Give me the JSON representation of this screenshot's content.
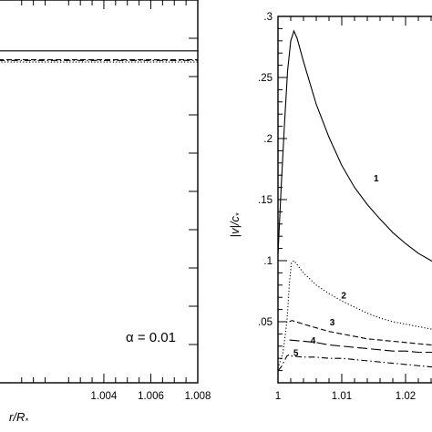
{
  "chart_data": [
    {
      "type": "line",
      "title": "",
      "xlabel": "r/R*",
      "xlabel_main": "r/R",
      "xlabel_sub": "*",
      "ylabel": "",
      "xlim": [
        0.9995,
        1.008
      ],
      "x_ticks": [
        1.004,
        1.006,
        1.008
      ],
      "x_tick_labels": [
        "1.004",
        "1.006",
        "1.008"
      ],
      "x_minor_ticks": [
        1.0005,
        1.001,
        1.0015,
        1.0025,
        1.003,
        1.0035,
        1.0045,
        1.005,
        1.0055,
        1.0065,
        1.007,
        1.0075
      ],
      "ylim": [
        0,
        1
      ],
      "y_ticks": [
        0.1,
        0.2,
        0.3,
        0.4,
        0.5,
        0.6,
        0.7,
        0.8,
        0.9
      ],
      "annotation": "α = 0.01",
      "series": [
        {
          "style": "solid",
          "x": [
            0.9995,
            1.008
          ],
          "y": [
            0.867,
            0.867
          ]
        },
        {
          "style": "dashed",
          "x": [
            0.9995,
            1.008
          ],
          "y": [
            0.844,
            0.844
          ]
        },
        {
          "style": "dotted",
          "x": [
            0.9995,
            1.008
          ],
          "y": [
            0.838,
            0.838
          ]
        },
        {
          "style": "dashdot",
          "x": [
            0.9995,
            1.008
          ],
          "y": [
            0.842,
            0.842
          ]
        }
      ]
    },
    {
      "type": "line",
      "title": "",
      "xlabel": "",
      "ylabel": "|v|/c*",
      "ylabel_main": "|v|/c",
      "ylabel_sub": "*",
      "xlim": [
        1,
        1.025
      ],
      "ylim": [
        0,
        0.3
      ],
      "x_ticks": [
        1,
        1.01,
        1.02
      ],
      "x_tick_labels": [
        "1",
        "1.01",
        "1.02"
      ],
      "x_minor_ticks": [
        1.002,
        1.004,
        1.006,
        1.008,
        1.012,
        1.014,
        1.016,
        1.018,
        1.022,
        1.024
      ],
      "y_ticks": [
        0.05,
        0.1,
        0.15,
        0.2,
        0.25,
        0.3
      ],
      "y_tick_labels": [
        ".05",
        ".1",
        ".15",
        ".2",
        ".25",
        ".3"
      ],
      "y_minor_ticks": [
        0.01,
        0.02,
        0.03,
        0.04,
        0.06,
        0.07,
        0.08,
        0.09,
        0.11,
        0.12,
        0.13,
        0.14,
        0.16,
        0.17,
        0.18,
        0.19,
        0.21,
        0.22,
        0.23,
        0.24,
        0.26,
        0.27,
        0.28,
        0.29
      ],
      "series": [
        {
          "name": "1",
          "style": "solid",
          "x": [
            1.0,
            1.0005,
            1.001,
            1.0015,
            1.002,
            1.0025,
            1.003,
            1.004,
            1.006,
            1.008,
            1.01,
            1.012,
            1.014,
            1.016,
            1.018,
            1.02,
            1.022,
            1.024,
            1.025
          ],
          "y": [
            0.105,
            0.16,
            0.21,
            0.255,
            0.28,
            0.288,
            0.282,
            0.263,
            0.228,
            0.201,
            0.178,
            0.16,
            0.146,
            0.134,
            0.123,
            0.114,
            0.106,
            0.1,
            0.097
          ],
          "label_at": [
            1.0154,
            0.168
          ]
        },
        {
          "name": "2",
          "style": "dotted",
          "x": [
            1.0,
            1.0008,
            1.0014,
            1.0018,
            1.0021,
            1.0025,
            1.004,
            1.006,
            1.008,
            1.01,
            1.012,
            1.014,
            1.016,
            1.018,
            1.02,
            1.022,
            1.024,
            1.025
          ],
          "y": [
            0.012,
            0.025,
            0.05,
            0.082,
            0.098,
            0.1,
            0.09,
            0.08,
            0.073,
            0.067,
            0.062,
            0.057,
            0.053,
            0.05,
            0.048,
            0.046,
            0.044,
            0.043
          ],
          "label_at": [
            1.0103,
            0.072
          ]
        },
        {
          "name": "3",
          "style": "dashed",
          "x": [
            1.0018,
            1.0022,
            1.004,
            1.006,
            1.008,
            1.01,
            1.012,
            1.014,
            1.016,
            1.018,
            1.02,
            1.022,
            1.024,
            1.025
          ],
          "y": [
            0.05,
            0.051,
            0.048,
            0.045,
            0.042,
            0.04,
            0.038,
            0.036,
            0.035,
            0.034,
            0.033,
            0.032,
            0.031,
            0.031
          ],
          "label_at": [
            1.0085,
            0.05
          ]
        },
        {
          "name": "4",
          "style": "longdash",
          "x": [
            1.0018,
            1.004,
            1.006,
            1.008,
            1.01,
            1.012,
            1.014,
            1.016,
            1.018,
            1.02,
            1.022,
            1.024,
            1.025
          ],
          "y": [
            0.035,
            0.034,
            0.033,
            0.031,
            0.03,
            0.029,
            0.028,
            0.027,
            0.026,
            0.026,
            0.025,
            0.025,
            0.025
          ],
          "label_at": [
            1.0055,
            0.035
          ]
        },
        {
          "name": "5",
          "style": "dashdot",
          "x": [
            1.0,
            1.0005,
            1.001,
            1.0014,
            1.0018,
            1.002,
            1.004,
            1.006,
            1.008,
            1.01,
            1.012,
            1.014,
            1.016,
            1.018,
            1.02,
            1.022,
            1.024,
            1.025
          ],
          "y": [
            0.01,
            0.013,
            0.018,
            0.022,
            0.023,
            0.022,
            0.021,
            0.021,
            0.02,
            0.02,
            0.019,
            0.018,
            0.017,
            0.016,
            0.015,
            0.014,
            0.013,
            0.013
          ],
          "label_at": [
            1.0028,
            0.025
          ]
        }
      ]
    }
  ]
}
